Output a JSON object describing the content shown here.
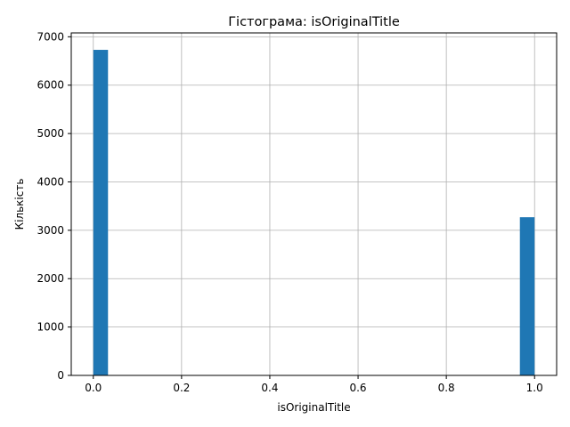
{
  "chart_data": {
    "type": "bar",
    "title": "Гістограма: isOriginalTitle",
    "xlabel": "isOriginalTitle",
    "ylabel": "Кількість",
    "xlim": [
      -0.05,
      1.05
    ],
    "ylim": [
      0,
      7080
    ],
    "grid": true,
    "bar_color": "#1f77b4",
    "bins": 30,
    "x_ticks": [
      0.0,
      0.2,
      0.4,
      0.6,
      0.8,
      1.0
    ],
    "x_tick_labels": [
      "0.0",
      "0.2",
      "0.4",
      "0.6",
      "0.8",
      "1.0"
    ],
    "y_ticks": [
      0,
      1000,
      2000,
      3000,
      4000,
      5000,
      6000,
      7000
    ],
    "y_tick_labels": [
      "0",
      "1000",
      "2000",
      "3000",
      "4000",
      "5000",
      "6000",
      "7000"
    ],
    "bars": [
      {
        "x0": 0.0,
        "x1": 0.0333,
        "value": 6730
      },
      {
        "x0": 0.9667,
        "x1": 1.0,
        "value": 3270
      }
    ]
  }
}
